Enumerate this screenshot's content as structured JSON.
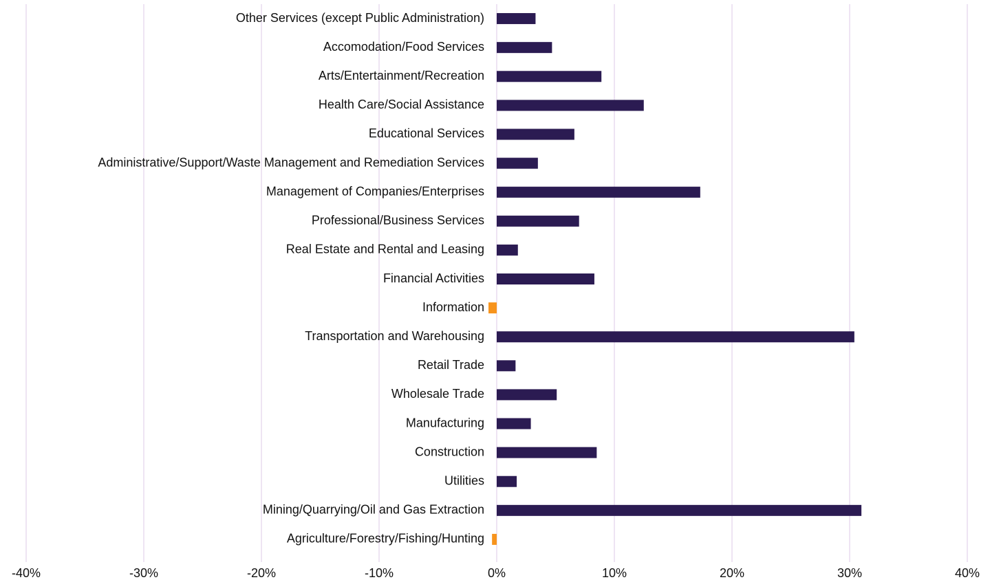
{
  "chart_data": {
    "type": "bar",
    "orientation": "horizontal",
    "categories": [
      "Other Services (except Public Administration)",
      "Accomodation/Food Services",
      "Arts/Entertainment/Recreation",
      "Health Care/Social Assistance",
      "Educational Services",
      "Administrative/Support/Waste Management and Remediation Services",
      "Management of Companies/Enterprises",
      "Professional/Business Services",
      "Real Estate and Rental and Leasing",
      "Financial Activities",
      "Information",
      "Transportation and Warehousing",
      "Retail Trade",
      "Wholesale Trade",
      "Manufacturing",
      "Construction",
      "Utilities",
      "Mining/Quarrying/Oil and Gas Extraction",
      "Agriculture/Forestry/Fishing/Hunting"
    ],
    "values": [
      3.3,
      4.7,
      8.9,
      12.5,
      6.6,
      3.5,
      17.3,
      7.0,
      1.8,
      8.3,
      -0.7,
      30.4,
      1.6,
      5.1,
      2.9,
      8.5,
      1.7,
      31.0,
      -0.4
    ],
    "color": "#2b1b52",
    "negative_color": "#f7941d",
    "xlim": [
      -40,
      40
    ],
    "xticks": [
      {
        "value": -40,
        "label": "-40%"
      },
      {
        "value": -30,
        "label": "-30%"
      },
      {
        "value": -20,
        "label": "-20%"
      },
      {
        "value": -10,
        "label": "-10%"
      },
      {
        "value": 0,
        "label": "0%"
      },
      {
        "value": 10,
        "label": "10%"
      },
      {
        "value": 20,
        "label": "20%"
      },
      {
        "value": 30,
        "label": "30%"
      },
      {
        "value": 40,
        "label": "40%"
      }
    ],
    "grid": true
  }
}
